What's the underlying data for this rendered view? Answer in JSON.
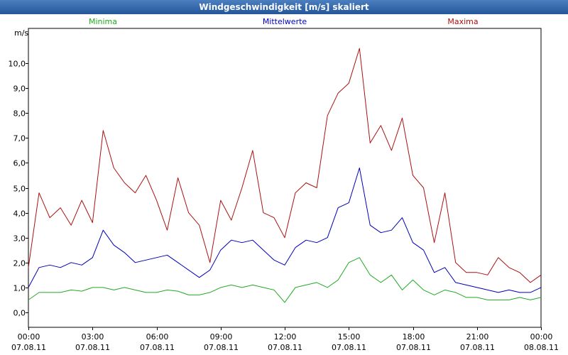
{
  "window": {
    "title": "Windgeschwindigkeit [m/s] skaliert"
  },
  "chart_data": {
    "type": "line",
    "title": "Windgeschwindigkeit [m/s] skaliert",
    "ylabel": "m/s",
    "xlabel": "",
    "ylim": [
      -0.6,
      11.4
    ],
    "xlim": [
      0,
      24
    ],
    "grid": true,
    "legend_placement": "top",
    "yticks": [
      0,
      1,
      2,
      3,
      4,
      5,
      6,
      7,
      8,
      9,
      10
    ],
    "ytick_labels": [
      "0,0",
      "1,0",
      "2,0",
      "3,0",
      "4,0",
      "5,0",
      "6,0",
      "7,0",
      "8,0",
      "9,0",
      "10,0"
    ],
    "xticks": [
      0,
      3,
      6,
      9,
      12,
      15,
      18,
      21,
      24
    ],
    "xtick_labels": [
      {
        "time": "00:00",
        "date": "07.08.11"
      },
      {
        "time": "03:00",
        "date": "07.08.11"
      },
      {
        "time": "06:00",
        "date": "07.08.11"
      },
      {
        "time": "09:00",
        "date": "07.08.11"
      },
      {
        "time": "12:00",
        "date": "07.08.11"
      },
      {
        "time": "15:00",
        "date": "07.08.11"
      },
      {
        "time": "18:00",
        "date": "07.08.11"
      },
      {
        "time": "21:00",
        "date": "07.08.11"
      },
      {
        "time": "00:00",
        "date": "08.08.11"
      }
    ],
    "series": [
      {
        "name": "Minima",
        "color": "#22aa22",
        "x": [
          0,
          0.5,
          1,
          1.5,
          2,
          2.5,
          3,
          3.5,
          4,
          4.5,
          5,
          5.5,
          6,
          6.5,
          7,
          7.5,
          8,
          8.5,
          9,
          9.5,
          10,
          10.5,
          11,
          11.5,
          12,
          12.5,
          13,
          13.5,
          14,
          14.5,
          15,
          15.5,
          16,
          16.5,
          17,
          17.5,
          18,
          18.5,
          19,
          19.5,
          20,
          20.5,
          21,
          21.5,
          22,
          22.5,
          23,
          23.5,
          24
        ],
        "values": [
          0.5,
          0.8,
          0.8,
          0.8,
          0.9,
          0.85,
          1.0,
          1.0,
          0.9,
          1.0,
          0.9,
          0.8,
          0.8,
          0.9,
          0.85,
          0.7,
          0.7,
          0.8,
          1.0,
          1.1,
          1.0,
          1.1,
          1.0,
          0.9,
          0.4,
          1.0,
          1.1,
          1.2,
          1.0,
          1.3,
          2.0,
          2.2,
          1.5,
          1.2,
          1.5,
          0.9,
          1.3,
          0.9,
          0.7,
          0.9,
          0.8,
          0.6,
          0.6,
          0.5,
          0.5,
          0.5,
          0.6,
          0.5,
          0.6
        ]
      },
      {
        "name": "Mittelwerte",
        "color": "#0000bb",
        "x": [
          0,
          0.5,
          1,
          1.5,
          2,
          2.5,
          3,
          3.5,
          4,
          4.5,
          5,
          5.5,
          6,
          6.5,
          7,
          7.5,
          8,
          8.5,
          9,
          9.5,
          10,
          10.5,
          11,
          11.5,
          12,
          12.5,
          13,
          13.5,
          14,
          14.5,
          15,
          15.5,
          16,
          16.5,
          17,
          17.5,
          18,
          18.5,
          19,
          19.5,
          20,
          20.5,
          21,
          21.5,
          22,
          22.5,
          23,
          23.5,
          24
        ],
        "values": [
          1.0,
          1.8,
          1.9,
          1.8,
          2.0,
          1.9,
          2.2,
          3.3,
          2.7,
          2.4,
          2.0,
          2.1,
          2.2,
          2.3,
          2.0,
          1.7,
          1.4,
          1.7,
          2.5,
          2.9,
          2.8,
          2.9,
          2.5,
          2.1,
          1.9,
          2.6,
          2.9,
          2.8,
          3.0,
          4.2,
          4.4,
          5.8,
          3.5,
          3.2,
          3.3,
          3.8,
          2.8,
          2.5,
          1.6,
          1.8,
          1.2,
          1.1,
          1.0,
          0.9,
          0.8,
          0.9,
          0.8,
          0.8,
          1.0
        ]
      },
      {
        "name": "Maxima",
        "color": "#aa1111",
        "x": [
          0,
          0.5,
          1,
          1.5,
          2,
          2.5,
          3,
          3.5,
          4,
          4.5,
          5,
          5.5,
          6,
          6.5,
          7,
          7.5,
          8,
          8.5,
          9,
          9.5,
          10,
          10.5,
          11,
          11.5,
          12,
          12.5,
          13,
          13.5,
          14,
          14.5,
          15,
          15.5,
          16,
          16.5,
          17,
          17.5,
          18,
          18.5,
          19,
          19.5,
          20,
          20.5,
          21,
          21.5,
          22,
          22.5,
          23,
          23.5,
          24
        ],
        "values": [
          1.8,
          4.8,
          3.8,
          4.2,
          3.5,
          4.5,
          3.6,
          7.3,
          5.8,
          5.2,
          4.8,
          5.5,
          4.5,
          3.3,
          5.4,
          4.0,
          3.5,
          2.0,
          4.5,
          3.7,
          5.0,
          6.5,
          4.0,
          3.8,
          3.0,
          4.8,
          5.2,
          5.0,
          7.9,
          8.8,
          9.2,
          10.6,
          6.8,
          7.5,
          6.5,
          7.8,
          5.5,
          5.0,
          2.8,
          4.8,
          2.0,
          1.6,
          1.6,
          1.5,
          2.2,
          1.8,
          1.6,
          1.2,
          1.5
        ]
      }
    ]
  }
}
